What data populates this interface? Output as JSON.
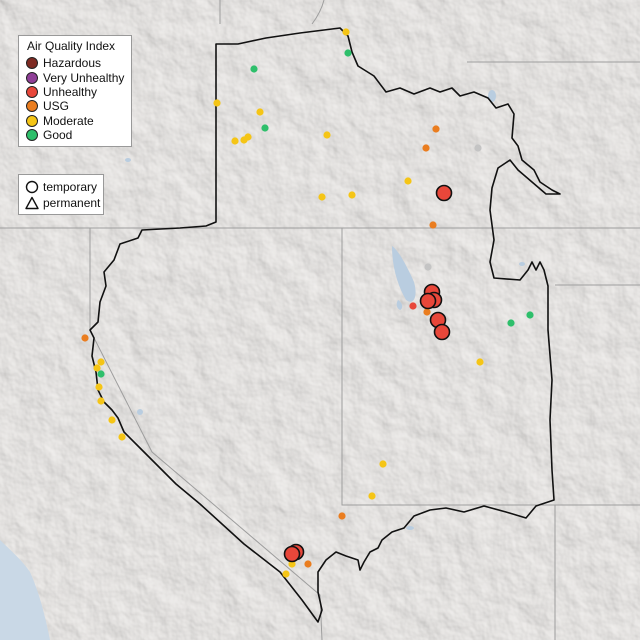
{
  "legend": {
    "title": "Air Quality Index",
    "categories": [
      {
        "label": "Hazardous",
        "color": "#7e2a22"
      },
      {
        "label": "Very Unhealthy",
        "color": "#8f3f97"
      },
      {
        "label": "Unhealthy",
        "color": "#e8473a"
      },
      {
        "label": "USG",
        "color": "#ea7d1f"
      },
      {
        "label": "Moderate",
        "color": "#f5c516"
      },
      {
        "label": "Good",
        "color": "#2ebf6b"
      }
    ],
    "no_data_color": "#c4c4c4",
    "site_types": [
      {
        "label": "temporary",
        "icon": "circle-outline-icon"
      },
      {
        "label": "permanent",
        "icon": "triangle-outline-icon"
      }
    ]
  }
}
